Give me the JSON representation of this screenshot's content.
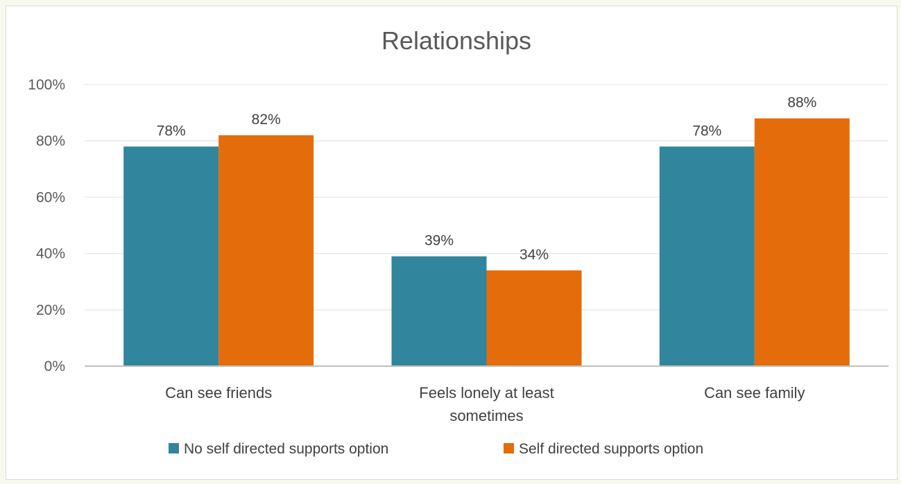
{
  "chart_data": {
    "type": "bar",
    "title": "Relationships",
    "xlabel": "",
    "ylabel": "",
    "ylim": [
      0,
      100
    ],
    "yticks": [
      "0%",
      "20%",
      "40%",
      "60%",
      "80%",
      "100%"
    ],
    "grid": true,
    "legend_position": "bottom",
    "categories": [
      [
        "Can see friends"
      ],
      [
        "Feels lonely at least",
        "sometimes"
      ],
      [
        "Can see family"
      ]
    ],
    "series": [
      {
        "name": "No self directed supports option",
        "color": "#31859c",
        "values": [
          78,
          39,
          78
        ],
        "labels": [
          "78%",
          "39%",
          "78%"
        ]
      },
      {
        "name": "Self directed supports option",
        "color": "#e46c0a",
        "values": [
          82,
          34,
          88
        ],
        "labels": [
          "82%",
          "34%",
          "88%"
        ]
      }
    ]
  }
}
